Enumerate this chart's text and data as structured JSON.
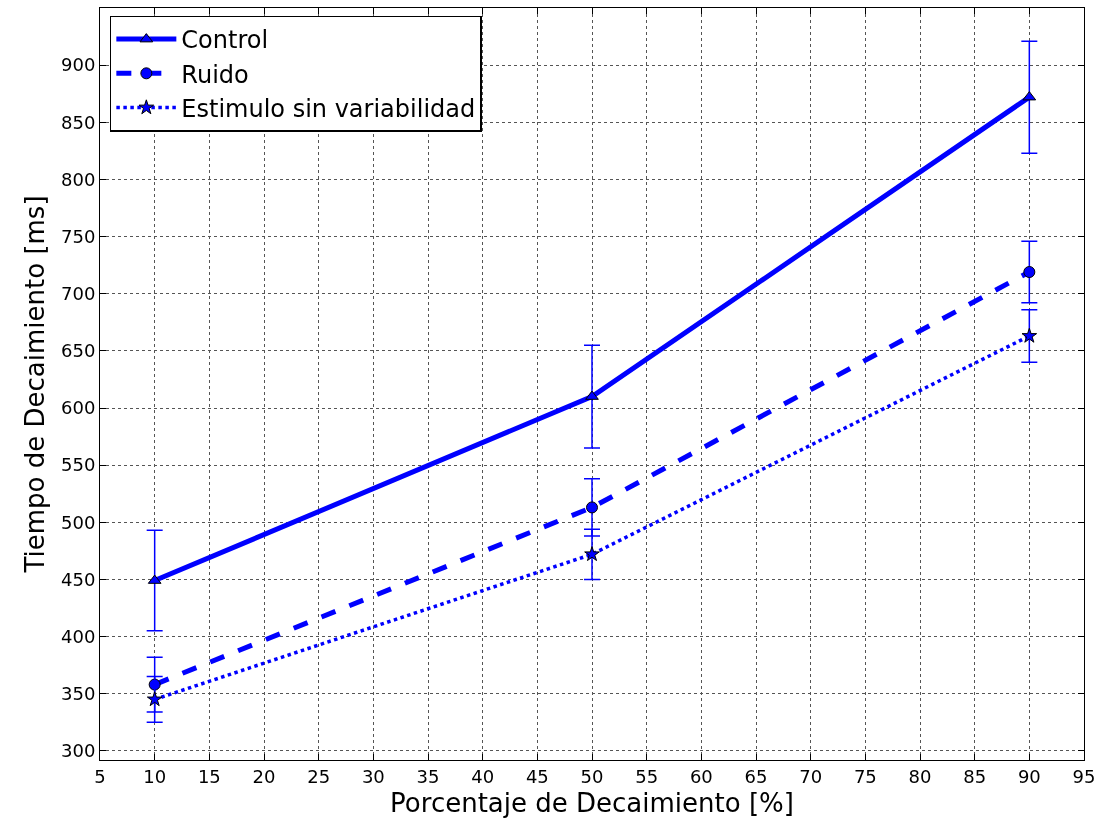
{
  "chart_data": {
    "type": "line",
    "xlabel": "Porcentaje de Decaimiento [%]",
    "ylabel": "Tiempo de Decaimiento [ms]",
    "x": [
      10,
      50,
      90
    ],
    "xlim": [
      5,
      95
    ],
    "xticks": [
      5,
      10,
      15,
      20,
      25,
      30,
      35,
      40,
      45,
      50,
      55,
      60,
      65,
      70,
      75,
      80,
      85,
      90,
      95
    ],
    "ylim": [
      292,
      950
    ],
    "yticks": [
      300,
      350,
      400,
      450,
      500,
      550,
      600,
      650,
      700,
      750,
      800,
      850,
      900
    ],
    "grid": true,
    "legend": "top left",
    "series": [
      {
        "name": "Control",
        "color": "#0000ff",
        "values": [
          449,
          610,
          872
        ],
        "errors": [
          44,
          45,
          49
        ],
        "marker": "triangle",
        "line_style": "solid"
      },
      {
        "name": "Ruido",
        "color": "#0000ff",
        "values": [
          358,
          513,
          719
        ],
        "errors": [
          24,
          25,
          27
        ],
        "marker": "circle",
        "line_style": "dashed"
      },
      {
        "name": "Estimulo sin variabilidad",
        "color": "#0000ff",
        "values": [
          345,
          472,
          663
        ],
        "errors": [
          20,
          22,
          23
        ],
        "marker": "star",
        "line_style": "dotted"
      }
    ]
  }
}
